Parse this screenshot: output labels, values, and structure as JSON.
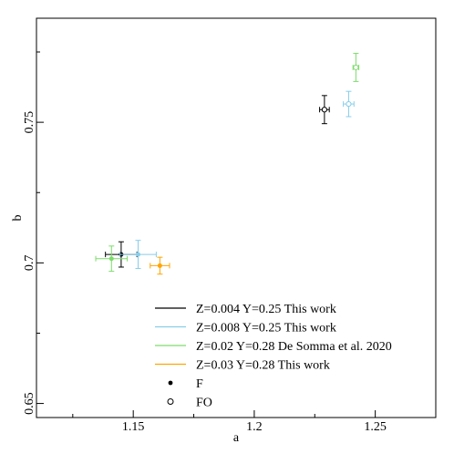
{
  "chart_data": {
    "type": "scatter",
    "title": "",
    "xlabel": "a",
    "ylabel": "b",
    "xlim": [
      1.11,
      1.275
    ],
    "ylim": [
      0.645,
      0.787
    ],
    "x_ticks": [
      {
        "value": 1.15,
        "label": "1.15"
      },
      {
        "value": 1.2,
        "label": "1.2"
      },
      {
        "value": 1.25,
        "label": "1.25"
      }
    ],
    "y_ticks": [
      {
        "value": 0.65,
        "label": "0.65"
      },
      {
        "value": 0.7,
        "label": "0.7"
      },
      {
        "value": 0.75,
        "label": "0.75"
      }
    ],
    "grid": false,
    "legend_position": "bottom-right",
    "series": [
      {
        "name": "Z=0.004 Y=0.25 This work",
        "color": "#000000",
        "points": [
          {
            "x": 1.145,
            "y": 0.703,
            "x_err": 0.0065,
            "y_err": 0.0045,
            "marker": "filled-circle"
          },
          {
            "x": 1.229,
            "y": 0.7545,
            "x_err": 0.002,
            "y_err": 0.005,
            "marker": "open-circle"
          }
        ]
      },
      {
        "name": "Z=0.008 Y=0.25 This work",
        "color": "#87ceeb",
        "points": [
          {
            "x": 1.152,
            "y": 0.703,
            "x_err": 0.0075,
            "y_err": 0.005,
            "marker": "filled-circle"
          },
          {
            "x": 1.239,
            "y": 0.7565,
            "x_err": 0.0022,
            "y_err": 0.0045,
            "marker": "open-circle"
          }
        ]
      },
      {
        "name": "Z=0.02 Y=0.28 De Somma et al. 2020",
        "color": "#7ddc6b",
        "points": [
          {
            "x": 1.141,
            "y": 0.7015,
            "x_err": 0.0065,
            "y_err": 0.0045,
            "marker": "filled-circle"
          },
          {
            "x": 1.242,
            "y": 0.7695,
            "x_err": 0.0012,
            "y_err": 0.005,
            "marker": "open-circle"
          }
        ]
      },
      {
        "name": "Z=0.03 Y=0.28 This work",
        "color": "#ffa500",
        "points": [
          {
            "x": 1.161,
            "y": 0.699,
            "x_err": 0.004,
            "y_err": 0.003,
            "marker": "filled-circle"
          }
        ]
      }
    ],
    "marker_legend": [
      {
        "label": "F",
        "marker": "filled-circle"
      },
      {
        "label": "FO",
        "marker": "open-circle"
      }
    ]
  }
}
